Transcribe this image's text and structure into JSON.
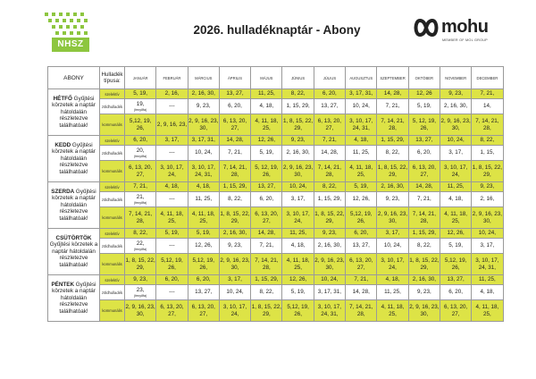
{
  "header": {
    "logo_text": "NHSZ",
    "title": "2026. hulladéknaptár - Abony",
    "brand_name": "mohu",
    "brand_sub": "MEMBER OF MOL GROUP"
  },
  "table": {
    "corner_label": "ABONY",
    "type_header": "Hulladék típusa:",
    "months": [
      "JANUÁR",
      "FEBRUÁR",
      "MÁRCIUS",
      "ÁPRILIS",
      "MÁJUS",
      "JÚNIUS",
      "JÚLIUS",
      "AUGUSZTUS",
      "SZEPTEMBER",
      "OKTÓBER",
      "NOVEMBER",
      "DECEMBER"
    ],
    "days": [
      {
        "name": "HÉTFŐ",
        "text": "Gyűjtési körzetek a naptár hátoldalán részletezve találhatóak!",
        "rows": [
          {
            "type": "szelektív",
            "cls": "szel",
            "values": [
              "5, 19,",
              "2, 16,",
              "2, 16, 30,",
              "13, 27,",
              "11, 25,",
              "8, 22,",
              "6, 20,",
              "3, 17, 31,",
              "14, 28,",
              "12, 26",
              "9, 23,",
              "7, 21,"
            ]
          },
          {
            "type": "zöldhulladék",
            "cls": "zold",
            "values": [
              "19,|(fenyőfa)",
              "---",
              "9, 23,",
              "6, 20,",
              "4, 18,",
              "1, 15, 29,",
              "13, 27,",
              "10, 24,",
              "7, 21,",
              "5, 19,",
              "2, 16, 30,",
              "14,"
            ]
          },
          {
            "type": "kommunális",
            "cls": "komm",
            "values": [
              "5,12, 19, 26,",
              "2, 9, 16, 23,",
              "2, 9, 16, 23, 30,",
              "6, 13, 20, 27,",
              "4, 11, 18, 25,",
              "1, 8, 15, 22, 29,",
              "6, 13, 20, 27,",
              "3, 10, 17, 24, 31,",
              "7, 14, 21, 28,",
              "5, 12, 19, 26,",
              "2, 9, 16, 23, 30,",
              "7, 14, 21, 28,"
            ]
          }
        ]
      },
      {
        "name": "KEDD",
        "text": "Gyűjtési körzetek a naptár hátoldalán részletezve találhatóak!",
        "rows": [
          {
            "type": "szelektív",
            "cls": "szel",
            "values": [
              "6, 20,",
              "3, 17,",
              "3, 17, 31,",
              "14, 28,",
              "12, 26,",
              "9, 23,",
              "7, 21,",
              "4, 18,",
              "1, 15, 29,",
              "13, 27,",
              "10, 24,",
              "8, 22,"
            ]
          },
          {
            "type": "zöldhulladék",
            "cls": "zold",
            "values": [
              "20,|(fenyőfa)",
              "---",
              "10, 24,",
              "7, 21,",
              "5, 19,",
              "2, 16, 30,",
              "14, 28,",
              "11, 25,",
              "8, 22,",
              "6, 20,",
              "3, 17,",
              "1, 15,"
            ]
          },
          {
            "type": "kommunális",
            "cls": "komm",
            "values": [
              "6, 13, 20, 27,",
              "3, 10, 17, 24,",
              "3, 10, 17, 24, 31,",
              "7, 14, 21, 28,",
              "5, 12, 19, 26,",
              "2, 9, 16, 23, 30,",
              "7, 14, 21, 28,",
              "4, 11, 18, 25,",
              "1, 8, 15, 22, 29,",
              "6, 13, 20, 27,",
              "3, 10, 17, 24,",
              "1, 8, 15, 22, 29,"
            ]
          }
        ]
      },
      {
        "name": "SZERDA",
        "text": "Gyűjtési körzetek a naptár hátoldalán részletezve találhatóak!",
        "rows": [
          {
            "type": "szelektív",
            "cls": "szel",
            "values": [
              "7, 21,",
              "4, 18,",
              "4, 18,",
              "1, 15, 29,",
              "13, 27,",
              "10, 24,",
              "8, 22,",
              "5, 19,",
              "2, 16, 30,",
              "14, 28,",
              "11, 25,",
              "9, 23,"
            ]
          },
          {
            "type": "zöldhulladék",
            "cls": "zold",
            "values": [
              "21,|(fenyőfa)",
              "---",
              "11, 25,",
              "8, 22,",
              "6, 20,",
              "3, 17,",
              "1, 15, 29,",
              "12, 26,",
              "9, 23,",
              "7, 21,",
              "4, 18,",
              "2, 16,"
            ]
          },
          {
            "type": "kommunális",
            "cls": "komm",
            "values": [
              "7, 14, 21, 28,",
              "4, 11, 18, 25,",
              "4, 11, 18, 25,",
              "1, 8, 15, 22, 29,",
              "6, 13, 20, 27,",
              "3, 10, 17, 24,",
              "1, 8, 15, 22, 29,",
              "5,12, 19, 26,",
              "2, 9, 16, 23, 30,",
              "7, 14, 21, 28,",
              "4, 11, 18, 25,",
              "2, 9, 16, 23, 30,"
            ]
          }
        ]
      },
      {
        "name": "CSÜTÖRTÖK",
        "text": "Gyűjtési körzetek a naptár hátoldalán részletezve találhatóak!",
        "rows": [
          {
            "type": "szelektív",
            "cls": "szel",
            "values": [
              "8, 22,",
              "5, 19,",
              "5, 19,",
              "2, 16, 30,",
              "14, 28,",
              "11, 25,",
              "9, 23,",
              "6, 20,",
              "3, 17,",
              "1, 15, 29,",
              "12, 26,",
              "10, 24,"
            ]
          },
          {
            "type": "zöldhulladék",
            "cls": "zold",
            "values": [
              "22,|(fenyőfa)",
              "---",
              "12, 26,",
              "9, 23,",
              "7, 21,",
              "4, 18,",
              "2, 16, 30,",
              "13, 27,",
              "10, 24,",
              "8, 22,",
              "5, 19,",
              "3, 17,"
            ]
          },
          {
            "type": "kommunális",
            "cls": "komm",
            "values": [
              "1, 8, 15, 22, 29,",
              "5,12, 19, 26,",
              "5,12, 19, 26,",
              "2, 9, 16, 23, 30,",
              "7, 14, 21, 28,",
              "4, 11, 18, 25,",
              "2, 9, 16, 23, 30,",
              "6, 13, 20, 27,",
              "3, 10, 17, 24,",
              "1, 8, 15, 22, 29,",
              "5,12, 19, 26,",
              "3, 10, 17, 24, 31,"
            ]
          }
        ]
      },
      {
        "name": "PÉNTEK",
        "text": "Gyűjtési körzetek a naptár hátoldalán részletezve találhatóak!",
        "rows": [
          {
            "type": "szelektív",
            "cls": "szel",
            "values": [
              "9, 23,",
              "6, 20,",
              "6, 20,",
              "3, 17,",
              "1, 15, 29,",
              "12, 26,",
              "10, 24,",
              "7, 21,",
              "4, 18,",
              "2, 16, 30,",
              "13, 27,",
              "11, 25,"
            ]
          },
          {
            "type": "zöldhulladék",
            "cls": "zold",
            "values": [
              "23,|(fenyőfa)",
              "---",
              "13, 27,",
              "10, 24,",
              "8, 22,",
              "5, 19,",
              "3, 17, 31,",
              "14, 28,",
              "11, 25,",
              "9, 23,",
              "6, 20,",
              "4, 18,"
            ]
          },
          {
            "type": "kommunális",
            "cls": "komm",
            "values": [
              "2, 9, 16, 23, 30,",
              "6, 13, 20, 27,",
              "6, 13, 20, 27,",
              "3, 10, 17, 24,",
              "1, 8, 15, 22, 29,",
              "5,12, 19, 26,",
              "3, 10, 17, 24, 31,",
              "7, 14, 21, 28,",
              "4, 11, 18, 25,",
              "2, 9, 16, 23, 30,",
              "6, 13, 20, 27,",
              "4, 11, 18, 25,"
            ]
          }
        ]
      }
    ]
  },
  "colors": {
    "highlight": "#dde346",
    "logo_green": "#8dc63f",
    "border": "#9a9a9a"
  }
}
